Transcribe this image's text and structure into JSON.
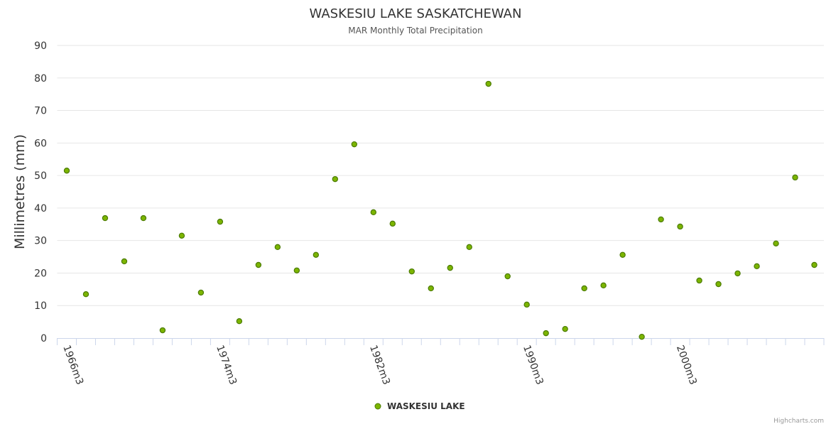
{
  "chart_data": {
    "type": "scatter",
    "title": "WASKESIU LAKE SASKATCHEWAN",
    "subtitle": "MAR Monthly Total Precipitation",
    "ylabel": "Millimetres (mm)",
    "xlabel": "",
    "ylim": [
      0,
      90
    ],
    "yticks": [
      0,
      10,
      20,
      30,
      40,
      50,
      60,
      70,
      80,
      90
    ],
    "grid": true,
    "legend_position": "bottom-center",
    "credits": "Highcharts.com",
    "categories": [
      "1966m3",
      "1967m3",
      "1968m3",
      "1969m3",
      "1970m3",
      "1971m3",
      "1972m3",
      "1973m3",
      "1974m3",
      "1975m3",
      "1976m3",
      "1977m3",
      "1978m3",
      "1979m3",
      "1980m3",
      "1981m3",
      "1982m3",
      "1983m3",
      "1984m3",
      "1985m3",
      "1986m3",
      "1987m3",
      "1988m3",
      "1989m3",
      "1990m3",
      "1991m3",
      "1992m3",
      "1993m3",
      "1994m3",
      "1995m3",
      "1996m3",
      "1997m3",
      "2000m3",
      "2001m3",
      "2002m3",
      "2003m3",
      "2004m3",
      "2005m3",
      "2006m3",
      "2007m3"
    ],
    "xtick_labels": [
      "1966m3",
      "1974m3",
      "1982m3",
      "1990m3",
      "2000m3"
    ],
    "series": [
      {
        "name": "WASKESIU LAKE",
        "color": "#7cb500",
        "values": [
          51.5,
          13.5,
          36.9,
          23.6,
          36.9,
          2.4,
          31.5,
          14.0,
          35.8,
          5.2,
          22.5,
          28.0,
          20.8,
          25.6,
          48.9,
          59.6,
          38.7,
          35.2,
          20.5,
          15.3,
          21.6,
          28.0,
          78.2,
          19.0,
          10.3,
          1.5,
          2.8,
          15.3,
          16.2,
          25.6,
          0.4,
          36.5,
          34.3,
          17.7,
          16.6,
          19.9,
          22.1,
          29.1,
          49.4,
          22.5
        ]
      }
    ]
  }
}
